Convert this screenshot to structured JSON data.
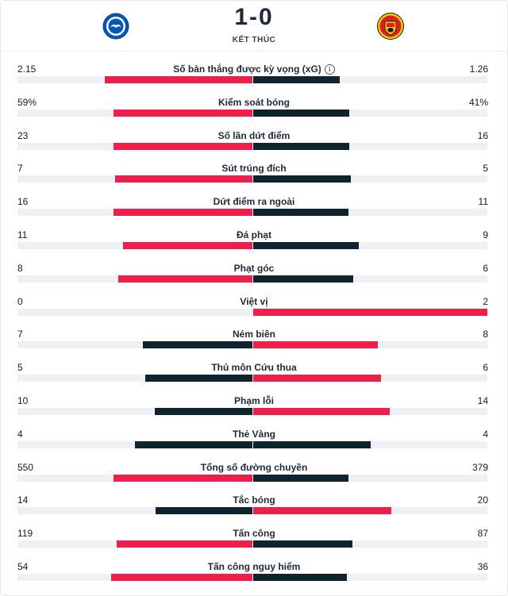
{
  "match": {
    "score": "1-0",
    "status": "KẾT THÚC"
  },
  "colors": {
    "red": "#ee1f4a",
    "dark": "#10242f",
    "track": "#eef0f3"
  },
  "stats": [
    {
      "label": "Số bàn thắng được kỳ vọng (xG)",
      "home": "2.15",
      "away": "1.26",
      "home_share": 0.63,
      "away_share": 0.37,
      "winner": "home",
      "info": true
    },
    {
      "label": "Kiểm soát bóng",
      "home": "59%",
      "away": "41%",
      "home_share": 0.59,
      "away_share": 0.41,
      "winner": "home"
    },
    {
      "label": "Số lần dứt điểm",
      "home": "23",
      "away": "16",
      "home_share": 0.5897,
      "away_share": 0.4103,
      "winner": "home"
    },
    {
      "label": "Sút trúng đích",
      "home": "7",
      "away": "5",
      "home_share": 0.5833,
      "away_share": 0.4167,
      "winner": "home"
    },
    {
      "label": "Dứt điểm ra ngoài",
      "home": "16",
      "away": "11",
      "home_share": 0.5926,
      "away_share": 0.4074,
      "winner": "home"
    },
    {
      "label": "Đá phạt",
      "home": "11",
      "away": "9",
      "home_share": 0.55,
      "away_share": 0.45,
      "winner": "home"
    },
    {
      "label": "Phạt góc",
      "home": "8",
      "away": "6",
      "home_share": 0.5714,
      "away_share": 0.4286,
      "winner": "home"
    },
    {
      "label": "Việt vị",
      "home": "0",
      "away": "2",
      "home_share": 0,
      "away_share": 1,
      "winner": "away"
    },
    {
      "label": "Ném biên",
      "home": "7",
      "away": "8",
      "home_share": 0.4667,
      "away_share": 0.5333,
      "winner": "away"
    },
    {
      "label": "Thủ môn Cứu thua",
      "home": "5",
      "away": "6",
      "home_share": 0.4545,
      "away_share": 0.5455,
      "winner": "away"
    },
    {
      "label": "Phạm lỗi",
      "home": "10",
      "away": "14",
      "home_share": 0.4167,
      "away_share": 0.5833,
      "winner": "away"
    },
    {
      "label": "Thẻ Vàng",
      "home": "4",
      "away": "4",
      "home_share": 0.5,
      "away_share": 0.5,
      "winner": "none"
    },
    {
      "label": "Tổng số đường chuyền",
      "home": "550",
      "away": "379",
      "home_share": 0.592,
      "away_share": 0.408,
      "winner": "home"
    },
    {
      "label": "Tắc bóng",
      "home": "14",
      "away": "20",
      "home_share": 0.4118,
      "away_share": 0.5882,
      "winner": "away"
    },
    {
      "label": "Tấn công",
      "home": "119",
      "away": "87",
      "home_share": 0.5777,
      "away_share": 0.4223,
      "winner": "home"
    },
    {
      "label": "Tấn công nguy hiểm",
      "home": "54",
      "away": "36",
      "home_share": 0.6,
      "away_share": 0.4,
      "winner": "home"
    }
  ]
}
